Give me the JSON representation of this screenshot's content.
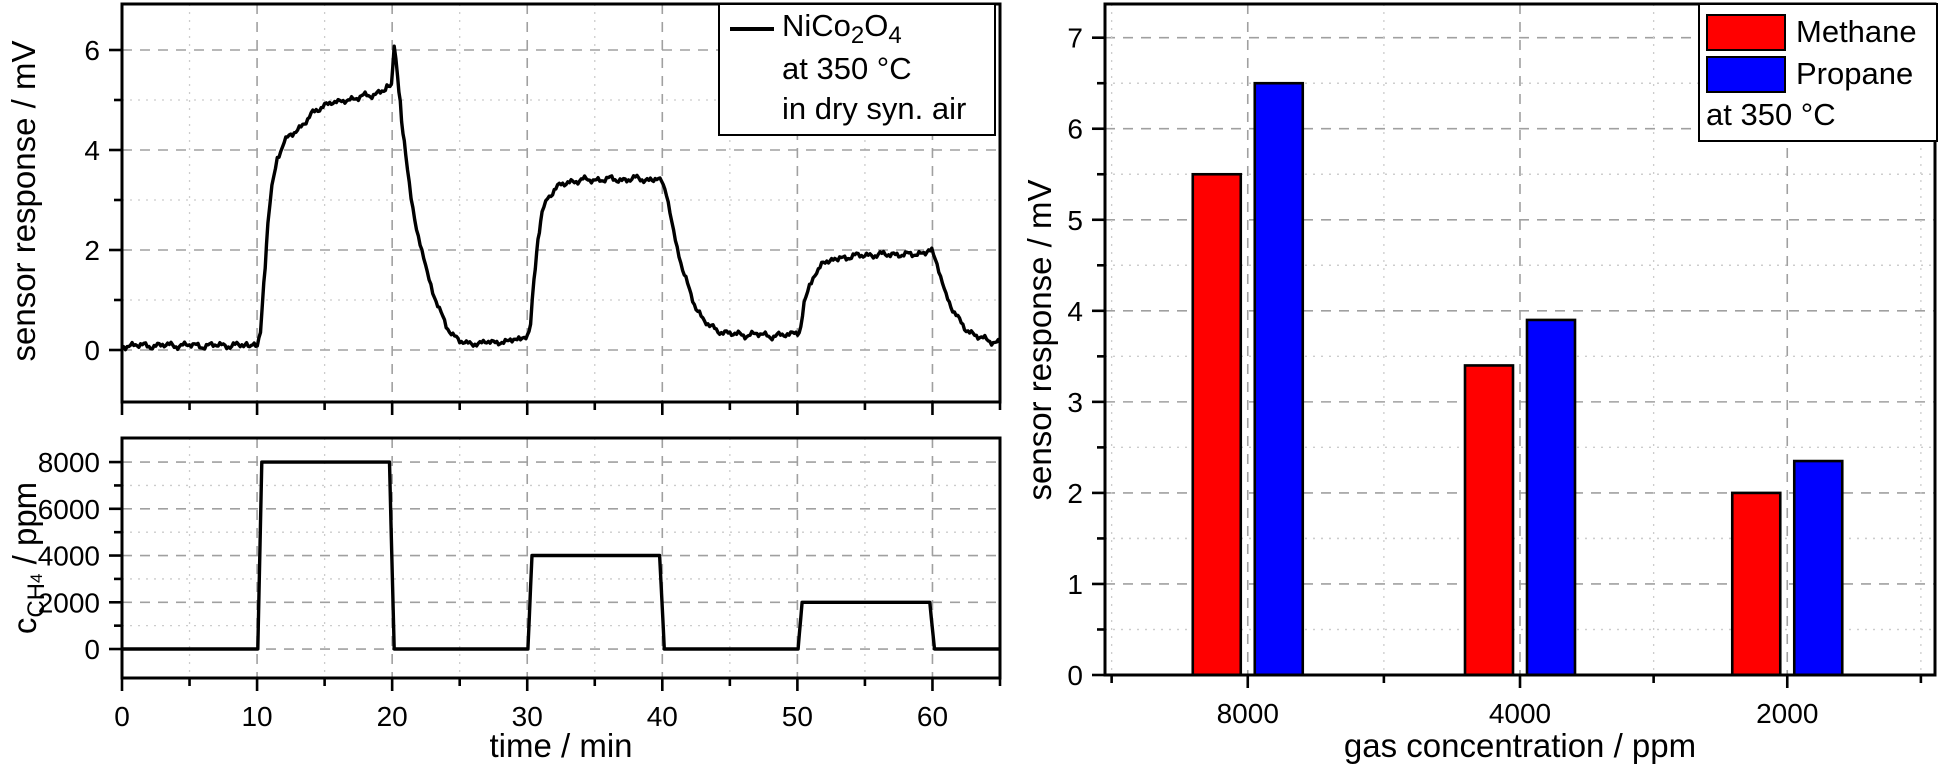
{
  "canvas": {
    "background": "#ffffff"
  },
  "labels": {
    "left_xlabel": "time / min",
    "response_ylabel": "sensor response / mV",
    "conc_ylabel": {
      "base": "c",
      "sub": "CH",
      "subsub": "4",
      "unit": " / ppm"
    },
    "bar_xlabel": "gas concentration / ppm",
    "bar_ylabel": "sensor response / mV"
  },
  "left_legend": {
    "material_parts": {
      "p1": "NiCo",
      "s1": "2",
      "p2": "O",
      "s2": "4"
    },
    "line2": "at 350 °C",
    "line3": "in dry syn. air",
    "line_color": "#000000"
  },
  "right_legend": {
    "entries": [
      {
        "label": "Methane",
        "color": "#ff0000"
      },
      {
        "label": "Propane",
        "color": "#0000ff"
      }
    ],
    "note": "at 350 °C"
  },
  "chart_data": [
    {
      "id": "response_vs_time",
      "type": "line",
      "title": "",
      "xlabel": "time / min",
      "ylabel": "sensor response / mV",
      "xlim": [
        0,
        65
      ],
      "ylim": [
        -1.04,
        6.92
      ],
      "x_major_ticks": [
        0,
        10,
        20,
        30,
        40,
        50,
        60
      ],
      "x_minor_ticks": [
        5,
        15,
        25,
        35,
        45,
        55,
        65
      ],
      "y_major_ticks": [
        0,
        2,
        4,
        6
      ],
      "y_minor_ticks": [
        1,
        3,
        5
      ],
      "grid": true,
      "legend": {
        "position": "top-right",
        "lines": [
          "NiCo2O4",
          "at 350 °C",
          "in dry syn. air"
        ]
      },
      "series": [
        {
          "name": "NiCo2O4",
          "color": "#000000",
          "noise": 0.038,
          "points": [
            [
              0,
              0.08
            ],
            [
              1,
              0.1
            ],
            [
              2,
              0.08
            ],
            [
              3,
              0.1
            ],
            [
              4,
              0.09
            ],
            [
              5,
              0.1
            ],
            [
              6,
              0.08
            ],
            [
              7,
              0.1
            ],
            [
              8,
              0.09
            ],
            [
              9,
              0.1
            ],
            [
              9.9,
              0.09
            ],
            [
              10.25,
              0.3
            ],
            [
              10.5,
              1.3
            ],
            [
              10.8,
              2.5
            ],
            [
              11.1,
              3.25
            ],
            [
              11.5,
              3.85
            ],
            [
              12,
              4.15
            ],
            [
              12.5,
              4.3
            ],
            [
              13,
              4.4
            ],
            [
              13.5,
              4.55
            ],
            [
              14,
              4.7
            ],
            [
              14.5,
              4.8
            ],
            [
              15,
              4.9
            ],
            [
              15.5,
              4.97
            ],
            [
              16,
              4.93
            ],
            [
              16.5,
              5.0
            ],
            [
              17,
              5.02
            ],
            [
              17.5,
              5.05
            ],
            [
              18,
              5.08
            ],
            [
              18.5,
              5.1
            ],
            [
              19,
              5.15
            ],
            [
              19.5,
              5.22
            ],
            [
              19.95,
              5.32
            ],
            [
              20.15,
              6.05
            ],
            [
              20.4,
              5.5
            ],
            [
              20.7,
              4.6
            ],
            [
              21,
              3.9
            ],
            [
              21.4,
              3.1
            ],
            [
              21.8,
              2.45
            ],
            [
              22.2,
              1.95
            ],
            [
              22.6,
              1.5
            ],
            [
              23,
              1.15
            ],
            [
              23.5,
              0.8
            ],
            [
              24,
              0.5
            ],
            [
              24.5,
              0.3
            ],
            [
              25,
              0.18
            ],
            [
              25.5,
              0.12
            ],
            [
              26,
              0.15
            ],
            [
              26.5,
              0.12
            ],
            [
              27,
              0.17
            ],
            [
              27.5,
              0.14
            ],
            [
              28,
              0.18
            ],
            [
              28.5,
              0.15
            ],
            [
              29,
              0.22
            ],
            [
              29.5,
              0.2
            ],
            [
              29.9,
              0.25
            ],
            [
              30.25,
              0.5
            ],
            [
              30.5,
              1.4
            ],
            [
              30.8,
              2.2
            ],
            [
              31.1,
              2.75
            ],
            [
              31.5,
              3.05
            ],
            [
              32,
              3.2
            ],
            [
              32.5,
              3.3
            ],
            [
              33,
              3.35
            ],
            [
              33.5,
              3.38
            ],
            [
              34,
              3.4
            ],
            [
              35,
              3.4
            ],
            [
              36,
              3.42
            ],
            [
              37,
              3.4
            ],
            [
              38,
              3.43
            ],
            [
              39,
              3.4
            ],
            [
              39.95,
              3.42
            ],
            [
              40.3,
              3.1
            ],
            [
              40.7,
              2.55
            ],
            [
              41.1,
              2.05
            ],
            [
              41.5,
              1.6
            ],
            [
              42,
              1.2
            ],
            [
              42.5,
              0.85
            ],
            [
              43,
              0.62
            ],
            [
              43.5,
              0.48
            ],
            [
              44,
              0.4
            ],
            [
              44.5,
              0.36
            ],
            [
              45,
              0.33
            ],
            [
              46,
              0.3
            ],
            [
              47,
              0.32
            ],
            [
              48,
              0.28
            ],
            [
              49,
              0.3
            ],
            [
              49.9,
              0.3
            ],
            [
              50.25,
              0.45
            ],
            [
              50.5,
              0.9
            ],
            [
              50.9,
              1.3
            ],
            [
              51.3,
              1.55
            ],
            [
              51.8,
              1.7
            ],
            [
              52.3,
              1.78
            ],
            [
              53,
              1.83
            ],
            [
              54,
              1.87
            ],
            [
              55,
              1.9
            ],
            [
              56,
              1.9
            ],
            [
              57,
              1.92
            ],
            [
              58,
              1.9
            ],
            [
              59,
              1.93
            ],
            [
              59.6,
              1.95
            ],
            [
              59.95,
              2.02
            ],
            [
              60.2,
              1.85
            ],
            [
              60.6,
              1.45
            ],
            [
              61,
              1.1
            ],
            [
              61.5,
              0.8
            ],
            [
              62,
              0.58
            ],
            [
              62.5,
              0.42
            ],
            [
              63,
              0.32
            ],
            [
              63.5,
              0.25
            ],
            [
              64,
              0.2
            ],
            [
              64.5,
              0.17
            ],
            [
              65,
              0.15
            ]
          ]
        }
      ]
    },
    {
      "id": "concentration_vs_time",
      "type": "line",
      "title": "",
      "xlabel": "time / min",
      "ylabel": "c_CH4 / ppm",
      "xlim": [
        0,
        65
      ],
      "ylim": [
        -1240,
        9030
      ],
      "x_major_ticks": [
        0,
        10,
        20,
        30,
        40,
        50,
        60
      ],
      "x_minor_ticks": [
        5,
        15,
        25,
        35,
        45,
        55,
        65
      ],
      "x_tick_labels": [
        "0",
        "10",
        "20",
        "30",
        "40",
        "50",
        "60"
      ],
      "y_major_ticks": [
        0,
        2000,
        4000,
        6000,
        8000
      ],
      "y_minor_ticks": [
        1000,
        3000,
        5000,
        7000
      ],
      "grid": true,
      "series": [
        {
          "name": "c_CH4",
          "color": "#000000",
          "noise": 0,
          "points": [
            [
              0,
              0
            ],
            [
              10.05,
              0
            ],
            [
              10.35,
              8000
            ],
            [
              19.8,
              8000
            ],
            [
              20.15,
              0
            ],
            [
              30.05,
              0
            ],
            [
              30.35,
              4000
            ],
            [
              39.8,
              4000
            ],
            [
              40.15,
              0
            ],
            [
              50.05,
              0
            ],
            [
              50.35,
              2000
            ],
            [
              59.8,
              2000
            ],
            [
              60.15,
              0
            ],
            [
              65,
              0
            ]
          ]
        }
      ]
    },
    {
      "id": "bar_response_vs_concentration",
      "type": "bar",
      "title": "",
      "xlabel": "gas concentration / ppm",
      "ylabel": "sensor response / mV",
      "categories": [
        "8000",
        "4000",
        "2000"
      ],
      "series": [
        {
          "name": "Methane",
          "color": "#ff0000",
          "values": [
            5.5,
            3.4,
            2.0
          ]
        },
        {
          "name": "Propane",
          "color": "#0000ff",
          "values": [
            6.5,
            3.9,
            2.35
          ]
        }
      ],
      "ylim": [
        0,
        7.37
      ],
      "y_major_ticks": [
        0,
        1,
        2,
        3,
        4,
        5,
        6,
        7
      ],
      "y_minor_step": 0.5,
      "grid": true,
      "legend": {
        "position": "top-right",
        "note": "at 350 °C"
      }
    }
  ]
}
